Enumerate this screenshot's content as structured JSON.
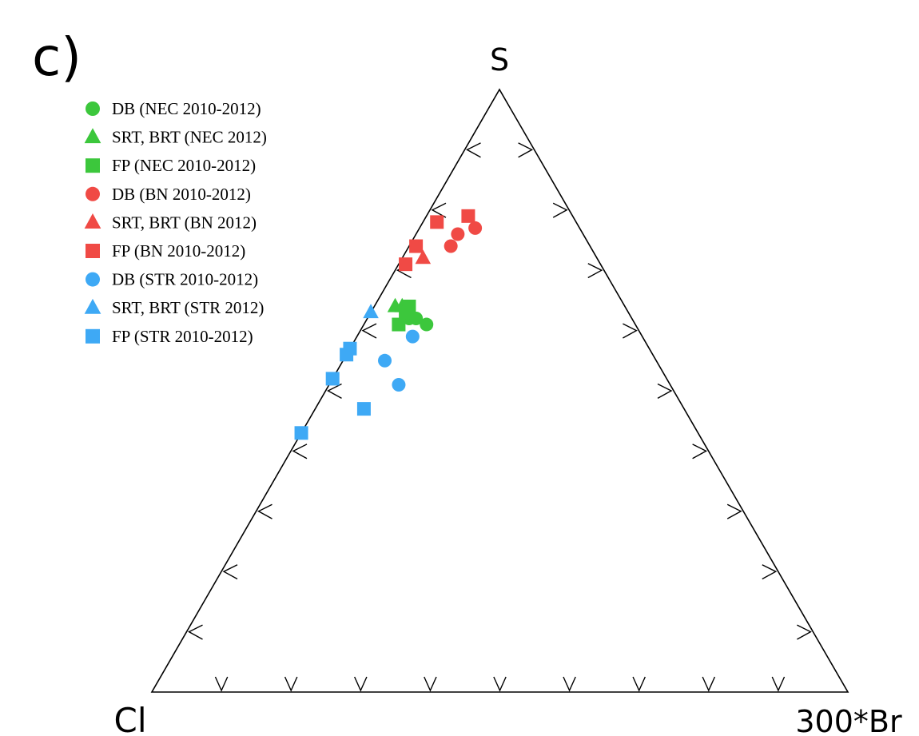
{
  "chart_data": {
    "type": "scatter",
    "subtype": "ternary",
    "panel_label": "c)",
    "apex_labels": {
      "top": "S",
      "left": "Cl",
      "right": "300*Br"
    },
    "axes": "ternary fractions S / Cl / 300*Br, each 0 to 1, tick marks every 0.1",
    "grid": false,
    "legend_position": "top-left",
    "series": [
      {
        "name": "DB (NEC 2010-2012)",
        "marker": "circle",
        "color": "#3cc73c",
        "points": [
          {
            "s": 0.62,
            "cl": 0.32,
            "br": 0.06
          },
          {
            "s": 0.61,
            "cl": 0.3,
            "br": 0.09
          },
          {
            "s": 0.62,
            "cl": 0.31,
            "br": 0.07
          }
        ]
      },
      {
        "name": "SRT, BRT (NEC 2012)",
        "marker": "triangle",
        "color": "#3cc73c",
        "points": [
          {
            "s": 0.64,
            "cl": 0.33,
            "br": 0.03
          },
          {
            "s": 0.64,
            "cl": 0.32,
            "br": 0.04
          }
        ]
      },
      {
        "name": "FP (NEC 2010-2012)",
        "marker": "square",
        "color": "#3cc73c",
        "points": [
          {
            "s": 0.64,
            "cl": 0.31,
            "br": 0.05
          },
          {
            "s": 0.63,
            "cl": 0.32,
            "br": 0.05
          },
          {
            "s": 0.61,
            "cl": 0.34,
            "br": 0.05
          }
        ]
      },
      {
        "name": "DB (BN 2010-2012)",
        "marker": "circle",
        "color": "#f04a45",
        "points": [
          {
            "s": 0.77,
            "cl": 0.15,
            "br": 0.08
          },
          {
            "s": 0.76,
            "cl": 0.18,
            "br": 0.06
          },
          {
            "s": 0.74,
            "cl": 0.2,
            "br": 0.06
          }
        ]
      },
      {
        "name": "SRT, BRT (BN 2012)",
        "marker": "triangle",
        "color": "#f04a45",
        "points": [
          {
            "s": 0.72,
            "cl": 0.25,
            "br": 0.03
          }
        ]
      },
      {
        "name": "FP (BN 2010-2012)",
        "marker": "square",
        "color": "#f04a45",
        "points": [
          {
            "s": 0.79,
            "cl": 0.15,
            "br": 0.06
          },
          {
            "s": 0.78,
            "cl": 0.2,
            "br": 0.02
          },
          {
            "s": 0.74,
            "cl": 0.25,
            "br": 0.01
          },
          {
            "s": 0.71,
            "cl": 0.28,
            "br": 0.01
          }
        ]
      },
      {
        "name": "DB (STR 2010-2012)",
        "marker": "circle",
        "color": "#3ea9f5",
        "points": [
          {
            "s": 0.59,
            "cl": 0.33,
            "br": 0.08
          },
          {
            "s": 0.55,
            "cl": 0.39,
            "br": 0.06
          },
          {
            "s": 0.51,
            "cl": 0.39,
            "br": 0.1
          }
        ]
      },
      {
        "name": "SRT, BRT (STR 2012)",
        "marker": "triangle",
        "color": "#3ea9f5",
        "points": [
          {
            "s": 0.63,
            "cl": 0.37,
            "br": 0.0
          }
        ]
      },
      {
        "name": "FP (STR 2010-2012)",
        "marker": "square",
        "color": "#3ea9f5",
        "points": [
          {
            "s": 0.57,
            "cl": 0.43,
            "br": 0.0
          },
          {
            "s": 0.56,
            "cl": 0.44,
            "br": 0.0
          },
          {
            "s": 0.52,
            "cl": 0.48,
            "br": 0.0
          },
          {
            "s": 0.47,
            "cl": 0.46,
            "br": 0.07
          },
          {
            "s": 0.43,
            "cl": 0.57,
            "br": 0.0
          }
        ]
      }
    ]
  }
}
